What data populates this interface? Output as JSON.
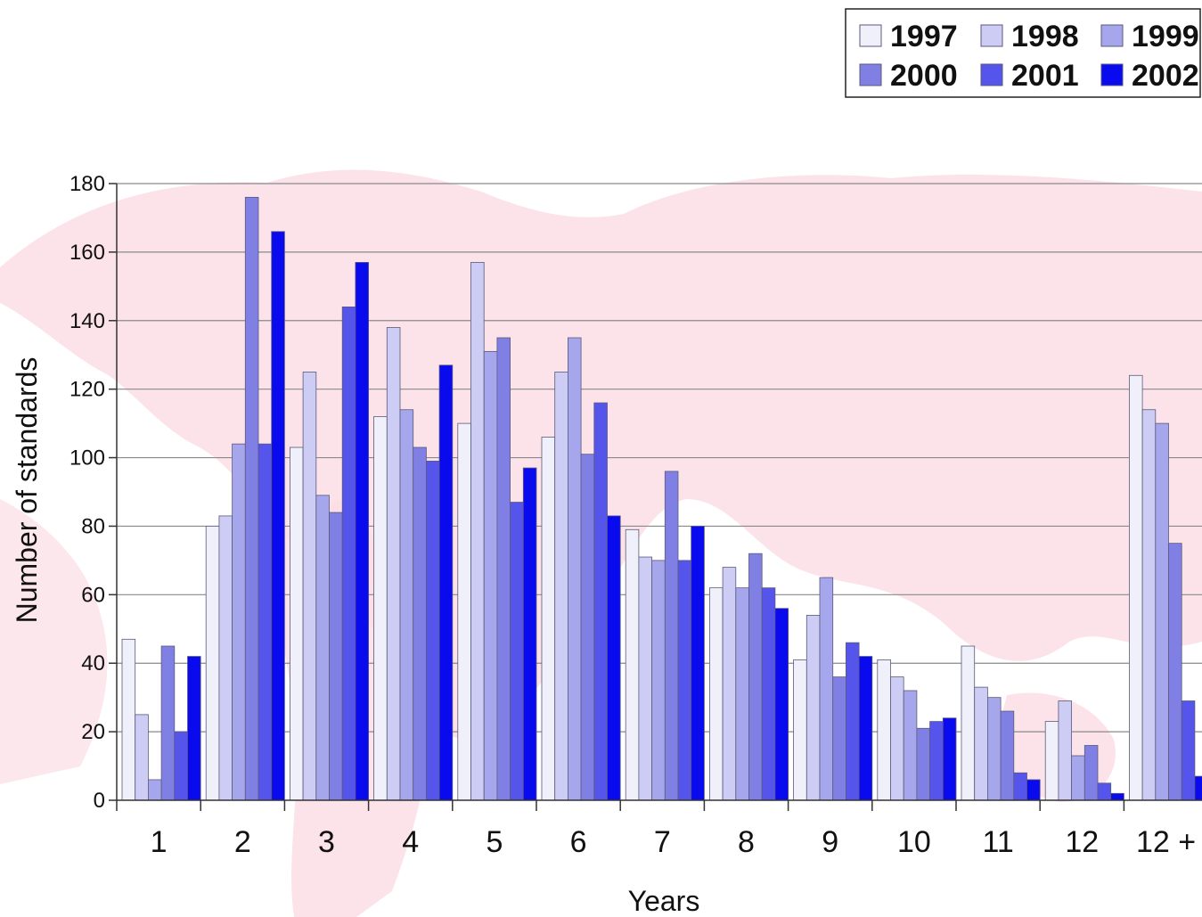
{
  "chart_data": {
    "type": "bar",
    "title": "",
    "xlabel": "Years",
    "ylabel": "Number of standards",
    "ylim": [
      0,
      180
    ],
    "yticks": [
      0,
      20,
      40,
      60,
      80,
      100,
      120,
      140,
      160,
      180
    ],
    "grid": true,
    "legend_position": "top-right",
    "categories": [
      "1",
      "2",
      "3",
      "4",
      "5",
      "6",
      "7",
      "8",
      "9",
      "10",
      "11",
      "12",
      "12 +"
    ],
    "series": [
      {
        "name": "1997",
        "color": "#f0f0fb",
        "values": [
          47,
          80,
          103,
          112,
          110,
          106,
          79,
          62,
          41,
          41,
          45,
          23,
          124
        ]
      },
      {
        "name": "1998",
        "color": "#ccccf4",
        "values": [
          25,
          83,
          125,
          138,
          157,
          125,
          71,
          68,
          54,
          36,
          33,
          29,
          114
        ]
      },
      {
        "name": "1999",
        "color": "#a6a6ec",
        "values": [
          6,
          104,
          89,
          114,
          131,
          135,
          70,
          62,
          65,
          32,
          30,
          13,
          110
        ]
      },
      {
        "name": "2000",
        "color": "#8080e4",
        "values": [
          45,
          176,
          84,
          103,
          135,
          101,
          96,
          72,
          36,
          21,
          26,
          16,
          75
        ]
      },
      {
        "name": "2001",
        "color": "#5555ec",
        "values": [
          20,
          104,
          144,
          99,
          87,
          116,
          70,
          62,
          46,
          23,
          8,
          5,
          29
        ]
      },
      {
        "name": "2002",
        "color": "#0a0aee",
        "values": [
          42,
          166,
          157,
          127,
          97,
          83,
          80,
          56,
          42,
          24,
          6,
          2,
          7
        ]
      }
    ]
  }
}
